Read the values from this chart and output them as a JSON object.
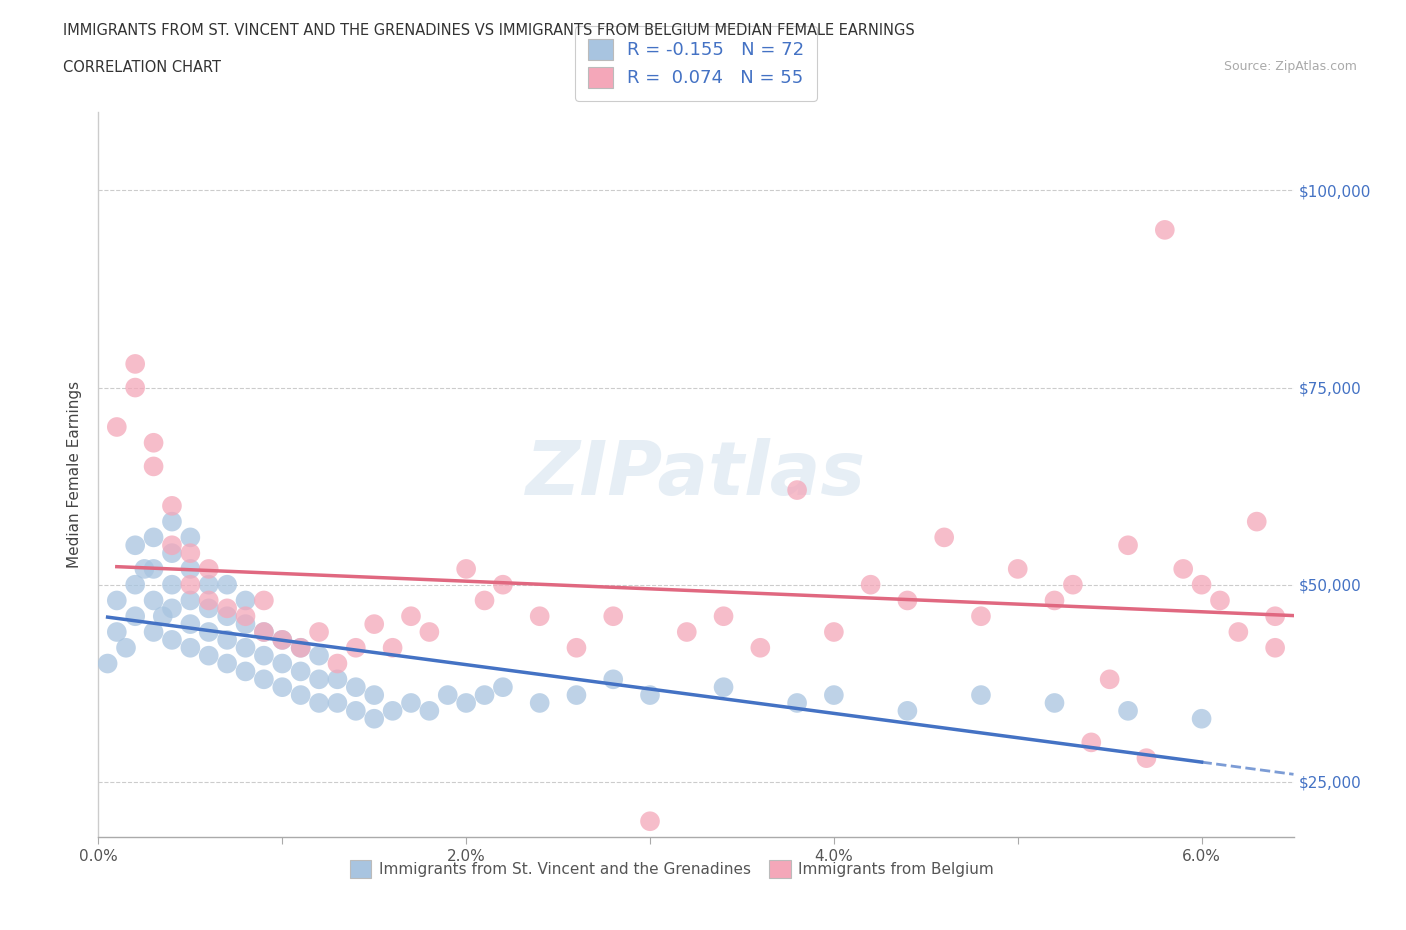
{
  "title_line1": "IMMIGRANTS FROM ST. VINCENT AND THE GRENADINES VS IMMIGRANTS FROM BELGIUM MEDIAN FEMALE EARNINGS",
  "title_line2": "CORRELATION CHART",
  "source_text": "Source: ZipAtlas.com",
  "ylabel": "Median Female Earnings",
  "xlim": [
    0.0,
    0.065
  ],
  "ylim": [
    18000,
    110000
  ],
  "xticks": [
    0.0,
    0.01,
    0.02,
    0.03,
    0.04,
    0.05,
    0.06
  ],
  "xticklabels": [
    "0.0%",
    "",
    "2.0%",
    "",
    "4.0%",
    "",
    "6.0%"
  ],
  "yticks": [
    25000,
    50000,
    75000,
    100000
  ],
  "yticklabels": [
    "$25,000",
    "$50,000",
    "$75,000",
    "$100,000"
  ],
  "r_blue": -0.155,
  "n_blue": 72,
  "r_pink": 0.074,
  "n_pink": 55,
  "blue_color": "#a8c4e0",
  "pink_color": "#f4a7b9",
  "blue_line_color": "#4472c4",
  "pink_line_color": "#e06880",
  "legend_text_color": "#4472c4",
  "watermark": "ZIPatlas",
  "label_blue": "Immigrants from St. Vincent and the Grenadines",
  "label_pink": "Immigrants from Belgium",
  "blue_scatter_x": [
    0.0005,
    0.001,
    0.001,
    0.0015,
    0.002,
    0.002,
    0.002,
    0.0025,
    0.003,
    0.003,
    0.003,
    0.003,
    0.0035,
    0.004,
    0.004,
    0.004,
    0.004,
    0.004,
    0.005,
    0.005,
    0.005,
    0.005,
    0.005,
    0.006,
    0.006,
    0.006,
    0.006,
    0.007,
    0.007,
    0.007,
    0.007,
    0.008,
    0.008,
    0.008,
    0.008,
    0.009,
    0.009,
    0.009,
    0.01,
    0.01,
    0.01,
    0.011,
    0.011,
    0.011,
    0.012,
    0.012,
    0.012,
    0.013,
    0.013,
    0.014,
    0.014,
    0.015,
    0.015,
    0.016,
    0.017,
    0.018,
    0.019,
    0.02,
    0.021,
    0.022,
    0.024,
    0.026,
    0.028,
    0.03,
    0.034,
    0.038,
    0.04,
    0.044,
    0.048,
    0.052,
    0.056,
    0.06
  ],
  "blue_scatter_y": [
    40000,
    44000,
    48000,
    42000,
    55000,
    50000,
    46000,
    52000,
    44000,
    48000,
    52000,
    56000,
    46000,
    43000,
    47000,
    50000,
    54000,
    58000,
    42000,
    45000,
    48000,
    52000,
    56000,
    41000,
    44000,
    47000,
    50000,
    40000,
    43000,
    46000,
    50000,
    39000,
    42000,
    45000,
    48000,
    38000,
    41000,
    44000,
    37000,
    40000,
    43000,
    36000,
    39000,
    42000,
    35000,
    38000,
    41000,
    35000,
    38000,
    34000,
    37000,
    33000,
    36000,
    34000,
    35000,
    34000,
    36000,
    35000,
    36000,
    37000,
    35000,
    36000,
    38000,
    36000,
    37000,
    35000,
    36000,
    34000,
    36000,
    35000,
    34000,
    33000
  ],
  "pink_scatter_x": [
    0.001,
    0.002,
    0.002,
    0.003,
    0.003,
    0.004,
    0.004,
    0.005,
    0.005,
    0.006,
    0.006,
    0.007,
    0.008,
    0.009,
    0.009,
    0.01,
    0.011,
    0.012,
    0.013,
    0.014,
    0.015,
    0.016,
    0.017,
    0.018,
    0.02,
    0.021,
    0.022,
    0.024,
    0.026,
    0.028,
    0.03,
    0.032,
    0.034,
    0.036,
    0.038,
    0.04,
    0.042,
    0.044,
    0.046,
    0.048,
    0.05,
    0.052,
    0.053,
    0.054,
    0.055,
    0.056,
    0.057,
    0.058,
    0.059,
    0.06,
    0.061,
    0.062,
    0.063,
    0.064,
    0.064
  ],
  "pink_scatter_y": [
    70000,
    75000,
    78000,
    65000,
    68000,
    55000,
    60000,
    50000,
    54000,
    48000,
    52000,
    47000,
    46000,
    44000,
    48000,
    43000,
    42000,
    44000,
    40000,
    42000,
    45000,
    42000,
    46000,
    44000,
    52000,
    48000,
    50000,
    46000,
    42000,
    46000,
    20000,
    44000,
    46000,
    42000,
    62000,
    44000,
    50000,
    48000,
    56000,
    46000,
    52000,
    48000,
    50000,
    30000,
    38000,
    55000,
    28000,
    95000,
    52000,
    50000,
    48000,
    44000,
    58000,
    42000,
    46000
  ]
}
